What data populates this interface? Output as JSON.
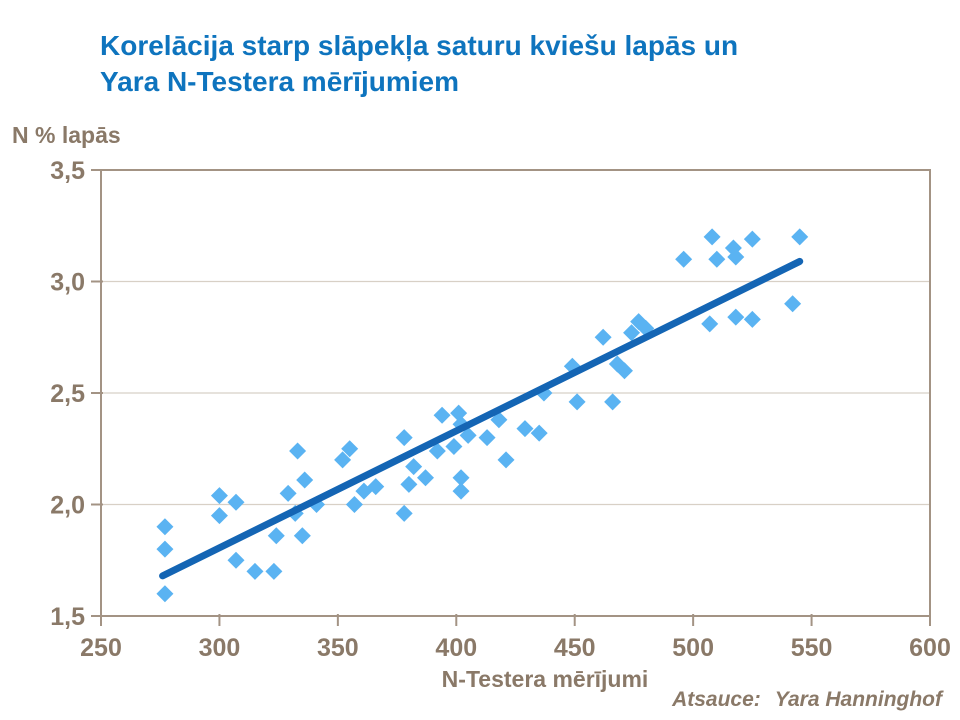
{
  "slide": {
    "title_line1": "Korelācija starp slāpekļa saturu kviešu lapās un",
    "title_line2": "Yara N-Testera mērījumiem"
  },
  "footer": {
    "attribution_label": "Atsauce:",
    "attribution_value": "Yara Hanninghof"
  },
  "colors": {
    "title_blue": "#0E74BE",
    "point_blue": "#5AB3F2",
    "trend_blue": "#1465B4",
    "axis_brown": "#A39384",
    "gridline": "#D8D0C6",
    "label_brown": "#8A7968",
    "background": "#FFFFFF"
  },
  "chart_data": {
    "type": "scatter",
    "title": "Korelācija starp slāpekļa saturu kviešu lapās un Yara N-Testera mērījumiem",
    "xlabel": "N-Testera mērījumi",
    "ylabel": "N % lapās",
    "xlim": [
      250,
      600
    ],
    "ylim": [
      1.5,
      3.5
    ],
    "x_ticks": [
      250,
      300,
      350,
      400,
      450,
      500,
      550,
      600
    ],
    "x_tick_labels": [
      "250",
      "300",
      "350",
      "400",
      "450",
      "500",
      "550",
      "600"
    ],
    "y_ticks": [
      1.5,
      2.0,
      2.5,
      3.0,
      3.5
    ],
    "y_tick_labels": [
      "1,5",
      "2,0",
      "2,5",
      "3,0",
      "3,5"
    ],
    "grid": "horizontal-only",
    "legend": "none",
    "marker": "diamond",
    "points": [
      [
        277,
        1.9
      ],
      [
        277,
        1.8
      ],
      [
        277,
        1.6
      ],
      [
        300,
        2.04
      ],
      [
        300,
        1.95
      ],
      [
        307,
        2.01
      ],
      [
        307,
        1.75
      ],
      [
        315,
        1.7
      ],
      [
        323,
        1.7
      ],
      [
        324,
        1.86
      ],
      [
        329,
        2.05
      ],
      [
        332,
        1.96
      ],
      [
        333,
        2.24
      ],
      [
        335,
        1.86
      ],
      [
        336,
        2.11
      ],
      [
        341,
        2.0
      ],
      [
        352,
        2.2
      ],
      [
        355,
        2.25
      ],
      [
        357,
        2.0
      ],
      [
        361,
        2.06
      ],
      [
        366,
        2.08
      ],
      [
        378,
        2.3
      ],
      [
        378,
        1.96
      ],
      [
        380,
        2.09
      ],
      [
        382,
        2.17
      ],
      [
        387,
        2.12
      ],
      [
        392,
        2.24
      ],
      [
        394,
        2.4
      ],
      [
        399,
        2.26
      ],
      [
        401,
        2.41
      ],
      [
        402,
        2.36
      ],
      [
        402,
        2.12
      ],
      [
        402,
        2.06
      ],
      [
        405,
        2.31
      ],
      [
        413,
        2.3
      ],
      [
        418,
        2.38
      ],
      [
        421,
        2.2
      ],
      [
        429,
        2.34
      ],
      [
        435,
        2.32
      ],
      [
        437,
        2.5
      ],
      [
        449,
        2.62
      ],
      [
        451,
        2.46
      ],
      [
        462,
        2.75
      ],
      [
        466,
        2.46
      ],
      [
        468,
        2.63
      ],
      [
        471,
        2.6
      ],
      [
        474,
        2.77
      ],
      [
        477,
        2.82
      ],
      [
        480,
        2.79
      ],
      [
        496,
        3.1
      ],
      [
        507,
        2.81
      ],
      [
        508,
        3.2
      ],
      [
        510,
        3.1
      ],
      [
        517,
        3.15
      ],
      [
        518,
        3.11
      ],
      [
        518,
        2.84
      ],
      [
        525,
        3.19
      ],
      [
        525,
        2.83
      ],
      [
        542,
        2.9
      ],
      [
        545,
        3.2
      ]
    ],
    "trend_line": {
      "from": [
        276,
        1.68
      ],
      "to": [
        545,
        3.09
      ]
    }
  }
}
